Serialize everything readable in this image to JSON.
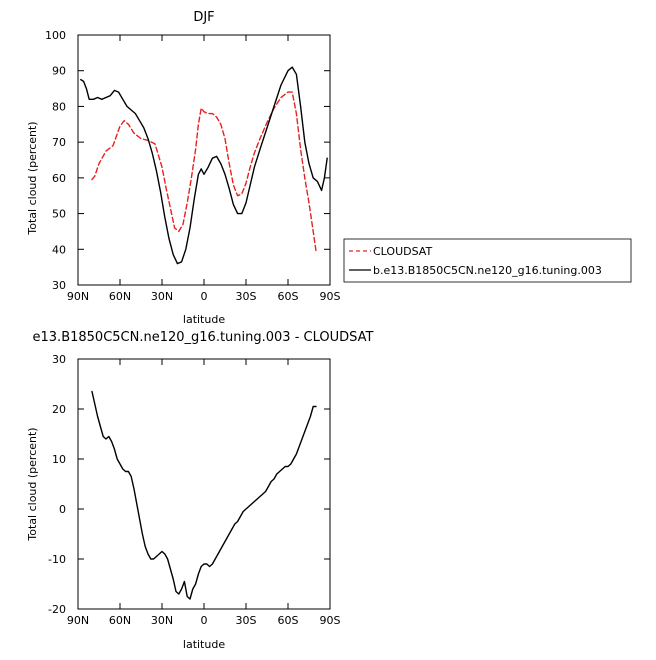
{
  "chart_data": [
    {
      "type": "line",
      "title": "DJF",
      "xlabel": "latitude",
      "ylabel": "Total cloud (percent)",
      "xlim": [
        90,
        -90
      ],
      "ylim": [
        30,
        100
      ],
      "x_ticks": [
        90,
        60,
        30,
        0,
        -30,
        -60,
        -90
      ],
      "x_tick_labels": [
        "90N",
        "60N",
        "30N",
        "0",
        "30S",
        "60S",
        "90S"
      ],
      "y_ticks": [
        30,
        40,
        50,
        60,
        70,
        80,
        90,
        100
      ],
      "y_tick_labels": [
        "30",
        "40",
        "50",
        "60",
        "70",
        "80",
        "90",
        "100"
      ],
      "grid": false,
      "legend_position": "right",
      "series": [
        {
          "name": "CLOUDSAT",
          "style": "dashed",
          "color": "#e8201f",
          "x": [
            80,
            78,
            75,
            70,
            65,
            60,
            57,
            54,
            50,
            45,
            40,
            35,
            30,
            27,
            24,
            21,
            18,
            15,
            12,
            9,
            6,
            4,
            2,
            0,
            -3,
            -6,
            -9,
            -12,
            -15,
            -18,
            -21,
            -24,
            -27,
            -30,
            -33,
            -36,
            -40,
            -45,
            -50,
            -55,
            -60,
            -63,
            -66,
            -69,
            -72,
            -75,
            -78,
            -80
          ],
          "y": [
            59.5,
            60.5,
            64,
            67.5,
            69,
            74.5,
            76,
            75,
            72.5,
            71,
            70.5,
            69.5,
            63,
            57,
            51.5,
            46,
            45,
            47,
            53,
            60,
            68,
            75,
            79.5,
            78.5,
            78,
            78,
            77,
            75,
            71,
            64,
            58,
            55,
            55.5,
            58.5,
            63,
            67,
            71,
            75.5,
            79.5,
            82.5,
            84,
            84,
            78,
            68,
            60,
            53,
            45,
            39.5
          ]
        },
        {
          "name": "b.e13.B1850C5CN.ne120_g16.tuning.003",
          "style": "solid",
          "color": "#000000",
          "x": [
            88,
            86,
            84,
            82,
            79,
            76,
            73,
            70,
            67,
            64,
            61,
            58,
            55,
            52,
            49,
            46,
            43,
            40,
            37,
            34,
            31,
            28,
            25,
            22,
            19,
            16,
            13,
            10,
            7,
            4,
            2,
            0,
            -3,
            -6,
            -9,
            -12,
            -15,
            -18,
            -21,
            -24,
            -27,
            -30,
            -33,
            -36,
            -40,
            -45,
            -50,
            -55,
            -60,
            -63,
            -66,
            -69,
            -72,
            -75,
            -78,
            -81,
            -84,
            -86,
            -88
          ],
          "y": [
            87.5,
            87,
            85,
            82,
            82,
            82.5,
            82,
            82.5,
            83,
            84.5,
            84,
            82,
            80,
            79,
            78,
            76,
            74,
            71,
            67,
            62,
            56,
            49,
            43,
            38.5,
            36,
            36.5,
            40,
            46,
            54,
            61,
            62.5,
            61,
            63,
            65.5,
            66,
            64,
            61,
            57,
            52.5,
            50,
            50,
            53,
            58,
            63,
            68,
            74,
            80,
            86,
            90,
            91,
            89,
            80,
            70,
            64,
            60,
            59,
            56.5,
            60,
            65.5
          ]
        }
      ]
    },
    {
      "type": "line",
      "title": "e13.B1850C5CN.ne120_g16.tuning.003 - CLOUDSAT",
      "xlabel": "latitude",
      "ylabel": "Total cloud (percent)",
      "xlim": [
        90,
        -90
      ],
      "ylim": [
        -20,
        30
      ],
      "x_ticks": [
        90,
        60,
        30,
        0,
        -30,
        -60,
        -90
      ],
      "x_tick_labels": [
        "90N",
        "60N",
        "30N",
        "0",
        "30S",
        "60S",
        "90S"
      ],
      "y_ticks": [
        -20,
        -10,
        0,
        10,
        20,
        30
      ],
      "y_tick_labels": [
        "-20",
        "-10",
        "0",
        "10",
        "20",
        "30"
      ],
      "grid": false,
      "series": [
        {
          "style": "solid",
          "color": "#000000",
          "x": [
            80,
            78,
            76,
            74,
            72,
            70,
            68,
            66,
            64,
            62,
            60,
            58,
            56,
            54,
            52,
            50,
            48,
            46,
            44,
            42,
            40,
            38,
            36,
            34,
            32,
            30,
            28,
            26,
            24,
            22,
            20,
            18,
            16,
            14,
            12,
            10,
            8,
            6,
            4,
            2,
            0,
            -2,
            -4,
            -6,
            -8,
            -10,
            -12,
            -14,
            -16,
            -18,
            -20,
            -22,
            -24,
            -26,
            -28,
            -30,
            -32,
            -34,
            -36,
            -38,
            -40,
            -42,
            -44,
            -46,
            -48,
            -50,
            -52,
            -54,
            -56,
            -58,
            -60,
            -62,
            -64,
            -66,
            -68,
            -70,
            -72,
            -74,
            -76,
            -78,
            -80
          ],
          "y": [
            23.5,
            21,
            18.5,
            16.5,
            14.5,
            14,
            14.5,
            13.5,
            12,
            10,
            9,
            8,
            7.5,
            7.5,
            6.5,
            4,
            1,
            -2,
            -5,
            -7.5,
            -9,
            -10,
            -10,
            -9.5,
            -9,
            -8.5,
            -9,
            -10,
            -12,
            -14,
            -16.5,
            -17,
            -16,
            -14.5,
            -17.5,
            -18,
            -16,
            -15,
            -13,
            -11.5,
            -11,
            -11,
            -11.5,
            -11,
            -10,
            -9,
            -8,
            -7,
            -6,
            -5,
            -4,
            -3,
            -2.5,
            -1.5,
            -0.5,
            0,
            0.5,
            1,
            1.5,
            2,
            2.5,
            3,
            3.5,
            4.5,
            5.5,
            6,
            7,
            7.5,
            8,
            8.5,
            8.5,
            9,
            10,
            11,
            12.5,
            14,
            15.5,
            17,
            18.5,
            20.5,
            20.5
          ]
        }
      ]
    }
  ]
}
